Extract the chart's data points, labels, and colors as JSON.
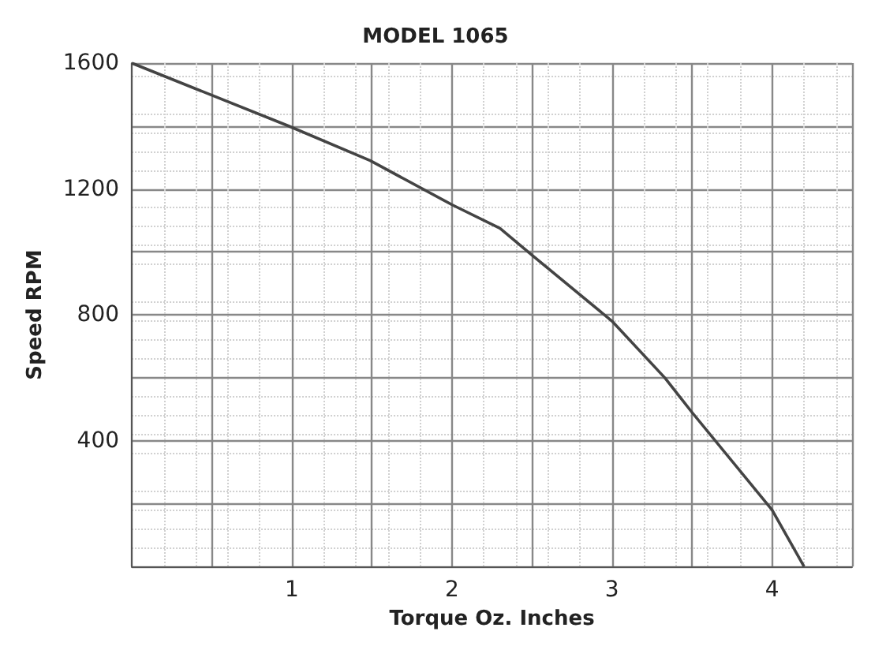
{
  "chart_data": {
    "type": "line",
    "title": "MODEL 1065",
    "xlabel": "Torque Oz. Inches",
    "ylabel": "Speed RPM",
    "x": [
      0,
      0.49,
      0.98,
      1.49,
      2,
      2.3,
      2.5,
      3,
      3.33,
      3.5,
      4,
      4.2
    ],
    "series": [
      {
        "color": "#444444",
        "values": [
          1600,
          1500,
          1400,
          1290,
          1150,
          1075,
          990,
          780,
          600,
          490,
          180,
          0
        ]
      }
    ],
    "xlim": [
      0,
      4.5
    ],
    "ylim": [
      0,
      1600
    ],
    "xticks": [
      {
        "value": 0,
        "label": null
      },
      {
        "value": 0.5,
        "label": null
      },
      1,
      {
        "value": 1.5,
        "label": null
      },
      2,
      {
        "value": 2.5,
        "label": null
      },
      3,
      {
        "value": 3.5,
        "label": null
      },
      4,
      {
        "value": 4.5,
        "label": null
      }
    ],
    "yticks": [
      {
        "value": 0,
        "label": null
      },
      {
        "value": 200,
        "label": null
      },
      400,
      {
        "value": 600,
        "label": null
      },
      800,
      {
        "value": 1000,
        "label": null
      },
      1200,
      {
        "value": 1400,
        "label": null
      },
      1600
    ],
    "grid": true,
    "marker": "none",
    "line_style": "solid"
  }
}
